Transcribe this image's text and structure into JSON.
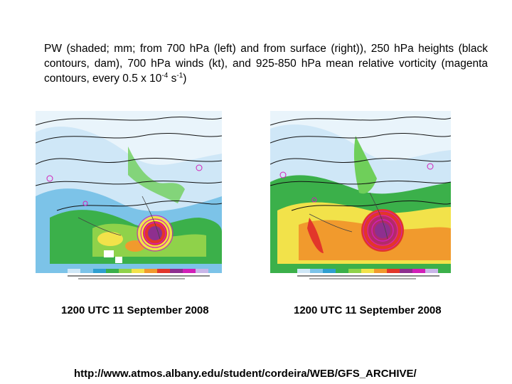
{
  "caption": {
    "part1": "PW (shaded; mm; from 700 hPa (left) and from surface (right)), 250 hPa heights (black contours, dam), 700 hPa winds (kt), and 925-850 hPa mean relative vorticity (magenta contours, every 0.5 x 10",
    "exp1": "-4",
    "part2": " s",
    "exp2": "-1",
    "part3": ")"
  },
  "maps": {
    "left": {
      "date": "1200 UTC 11 September 2008",
      "variant": "700 hPa"
    },
    "right": {
      "date": "1200 UTC 11 September 2008",
      "variant": "surface"
    }
  },
  "colors": {
    "low": "#2f9fd0",
    "light": "#cfe7f7",
    "green": "#3bb04a",
    "yellow": "#f2e24a",
    "orange": "#f19a2d",
    "red": "#e2362a",
    "purple": "#8e2f8f",
    "magenta": "#d21fb8"
  },
  "source_url": "http://www.atmos.albany.edu/student/cordeira/WEB/GFS_ARCHIVE/"
}
